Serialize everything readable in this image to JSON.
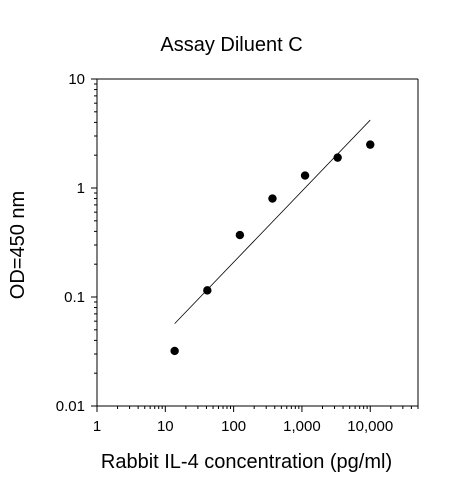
{
  "chart_data": {
    "type": "scatter",
    "title": "Assay Diluent C",
    "xlabel": "Rabbit IL-4 concentration (pg/ml)",
    "ylabel": "OD=450 nm",
    "x_scale": "log",
    "y_scale": "log",
    "xlim": [
      1,
      50000
    ],
    "ylim": [
      0.01,
      10
    ],
    "x_ticks": [
      {
        "value": 1,
        "label": "1"
      },
      {
        "value": 10,
        "label": "10"
      },
      {
        "value": 100,
        "label": "100"
      },
      {
        "value": 1000,
        "label": "1,000"
      },
      {
        "value": 10000,
        "label": "10,000"
      }
    ],
    "y_ticks": [
      {
        "value": 0.01,
        "label": "0.01"
      },
      {
        "value": 0.1,
        "label": "0.1"
      },
      {
        "value": 1,
        "label": "1"
      },
      {
        "value": 10,
        "label": "10"
      }
    ],
    "points": [
      {
        "x": 13.7,
        "y": 0.032
      },
      {
        "x": 41.2,
        "y": 0.115
      },
      {
        "x": 123.5,
        "y": 0.37
      },
      {
        "x": 370.4,
        "y": 0.8
      },
      {
        "x": 1111,
        "y": 1.3
      },
      {
        "x": 3333,
        "y": 1.9
      },
      {
        "x": 10000,
        "y": 2.5
      }
    ],
    "fit_line": {
      "x": [
        13.7,
        10000
      ],
      "y": [
        0.057,
        4.2
      ]
    },
    "grid": false,
    "legend": "none"
  }
}
